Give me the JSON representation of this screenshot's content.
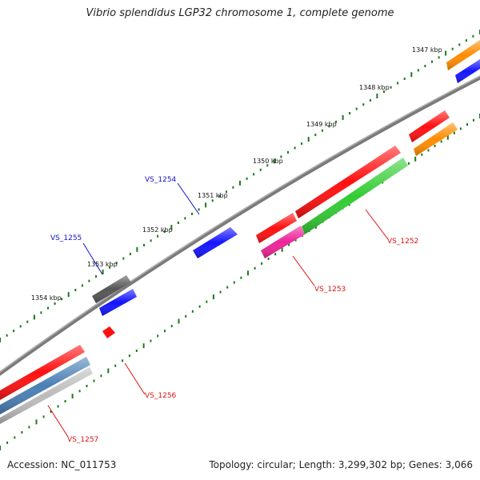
{
  "title": "Vibrio splendidus LGP32 chromosome 1, complete genome",
  "accession": "Accession: NC_011753",
  "topology": "Topology: circular; Length: 3,299,302 bp; Genes: 3,066",
  "kbp_labels": [
    "1347 kbp",
    "1348 kbp",
    "1349 kbp",
    "1350 kbp",
    "1351 kbp",
    "1352 kbp",
    "1353 kbp",
    "1354 kbp"
  ],
  "genes": [
    {
      "id": "VS_1252",
      "color": "#dd1111"
    },
    {
      "id": "VS_1253",
      "color": "#dd1111"
    },
    {
      "id": "VS_1254",
      "color": "#1111cc"
    },
    {
      "id": "VS_1255",
      "color": "#1111cc"
    },
    {
      "id": "VS_1256",
      "color": "#dd1111"
    },
    {
      "id": "VS_1257",
      "color": "#dd1111"
    }
  ],
  "colors": {
    "backbone": "#808080",
    "tick": "#1a7a1a",
    "red": "#ff1010",
    "blue": "#1414ff",
    "green": "#33cc33",
    "orange": "#ff8c00",
    "magenta": "#ee2299",
    "gray": "#555555",
    "steelblue": "#4a7fb5",
    "silver": "#bbbbbb"
  }
}
